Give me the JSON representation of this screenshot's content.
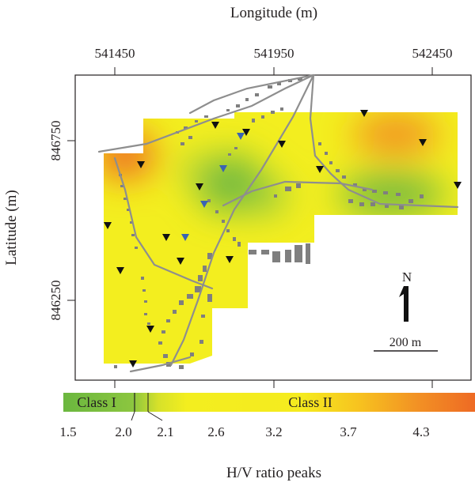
{
  "map": {
    "x_axis_title": "Longitude (m)",
    "y_axis_title": "Latitude (m)",
    "x_ticks": [
      "541450",
      "541950",
      "542450"
    ],
    "y_ticks": [
      "846750",
      "846250"
    ],
    "north_label": "N",
    "scale_bar_label": "200 m",
    "colors": {
      "low": "#6bb73f",
      "mid": "#f3ee1f",
      "high": "#ee6a24",
      "roads": "#8e8e8e",
      "buildings": "#7f7f7f",
      "marker_class1": "#3a63b3",
      "marker_class2": "#111111"
    }
  },
  "colorbar": {
    "title": "H/V ratio peaks",
    "class_labels": [
      "Class I",
      "Class II"
    ],
    "ticks": [
      "1.5",
      "2.0",
      "2.1",
      "2.6",
      "3.2",
      "3.7",
      "4.3"
    ]
  }
}
